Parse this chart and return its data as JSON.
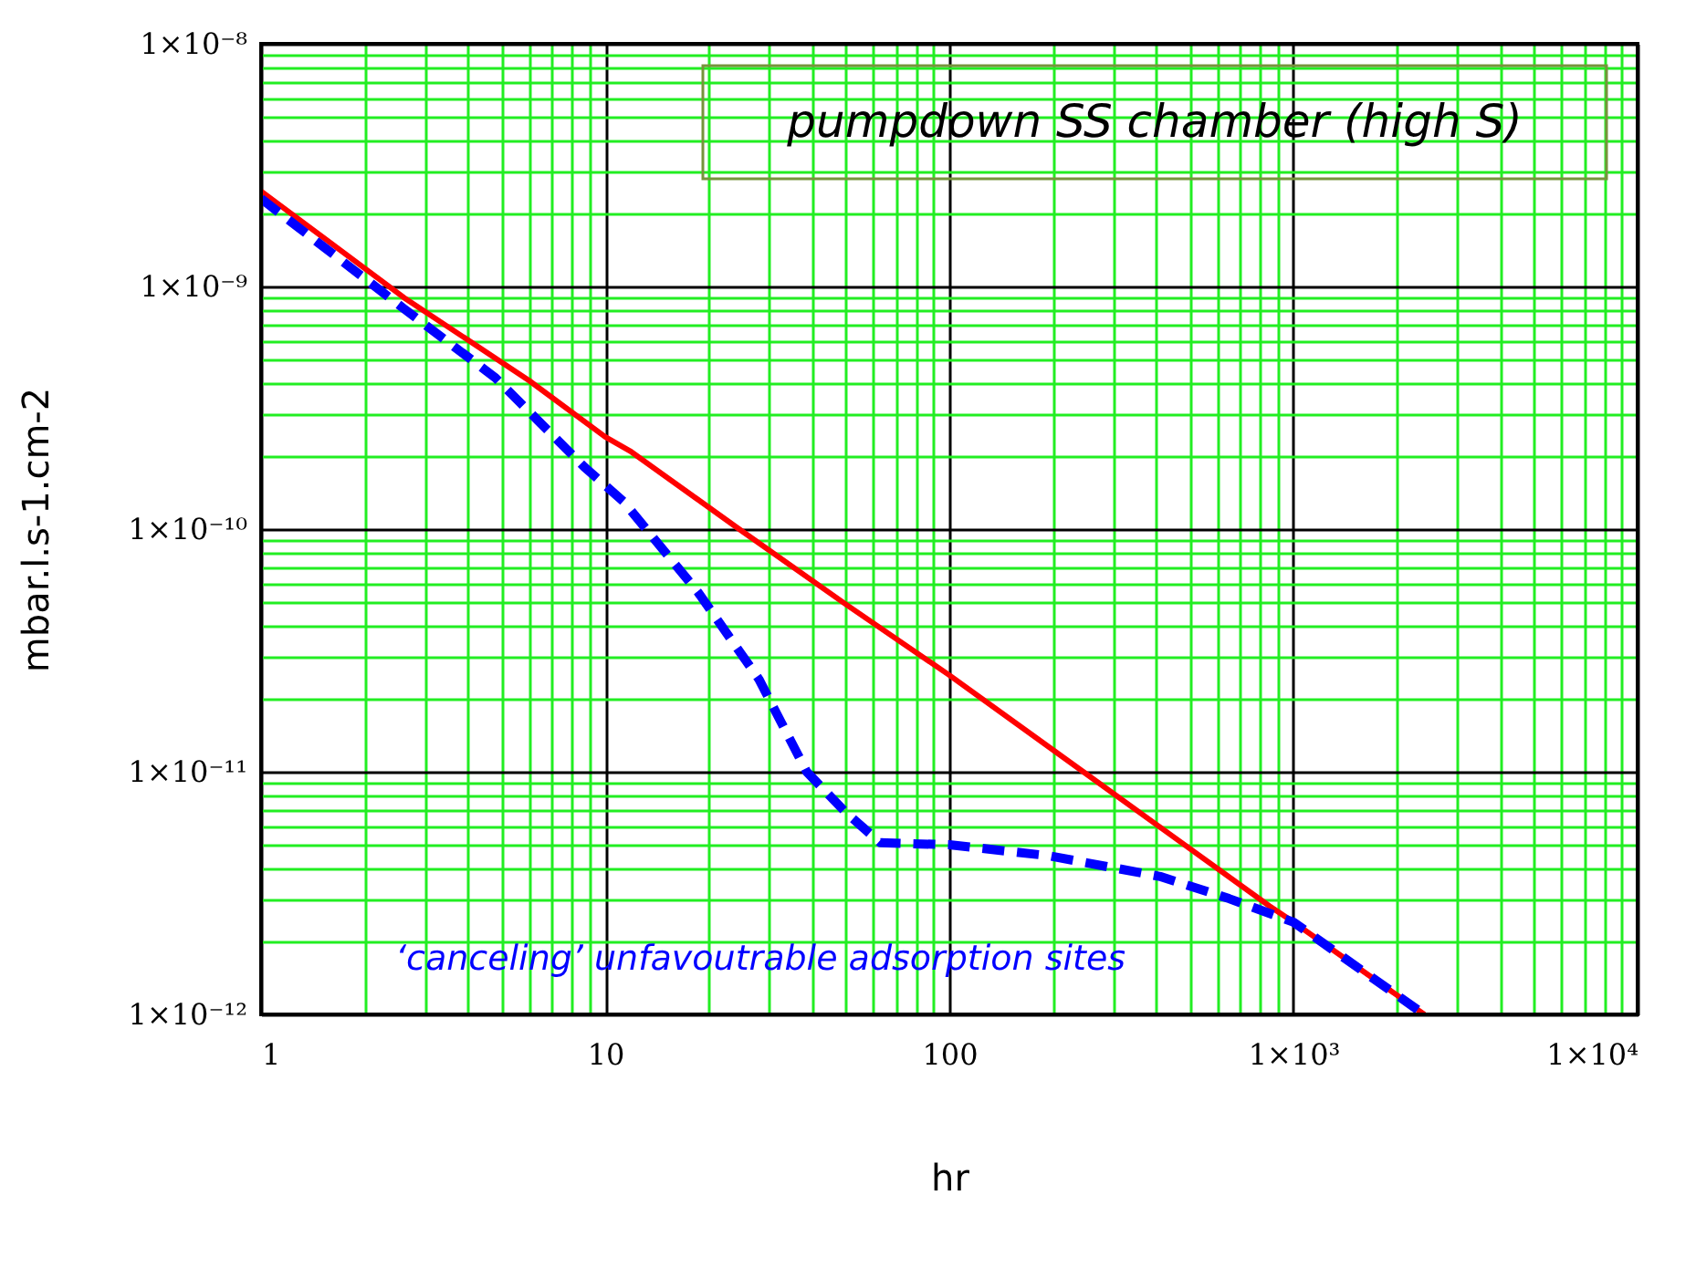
{
  "chart_data": {
    "type": "line",
    "xlabel": "hr",
    "ylabel": "mbar.l.s-1.cm-2",
    "annotations": [
      "pumpdown SS chamber (high S)",
      "‘canceling’ unfavoutrable adsorption sites"
    ],
    "log": "xy",
    "grid": true,
    "legend": false,
    "xlim": [
      1,
      10000
    ],
    "ylim": [
      1e-12,
      1e-08
    ],
    "xticks": [
      1,
      {
        "value": 2,
        "label": null
      },
      {
        "value": 3,
        "label": null
      },
      {
        "value": 4,
        "label": null
      },
      {
        "value": 5,
        "label": null
      },
      {
        "value": 6,
        "label": null
      },
      {
        "value": 7,
        "label": null
      },
      {
        "value": 8,
        "label": null
      },
      {
        "value": 9,
        "label": null
      },
      10,
      {
        "value": 20,
        "label": null
      },
      {
        "value": 30,
        "label": null
      },
      {
        "value": 40,
        "label": null
      },
      {
        "value": 50,
        "label": null
      },
      {
        "value": 60,
        "label": null
      },
      {
        "value": 70,
        "label": null
      },
      {
        "value": 80,
        "label": null
      },
      {
        "value": 90,
        "label": null
      },
      100,
      {
        "value": 200,
        "label": null
      },
      {
        "value": 300,
        "label": null
      },
      {
        "value": 400,
        "label": null
      },
      {
        "value": 500,
        "label": null
      },
      {
        "value": 600,
        "label": null
      },
      {
        "value": 700,
        "label": null
      },
      {
        "value": 800,
        "label": null
      },
      {
        "value": 900,
        "label": null
      },
      {
        "value": 1000,
        "label": "1×10³"
      },
      {
        "value": 2000,
        "label": null
      },
      {
        "value": 3000,
        "label": null
      },
      {
        "value": 4000,
        "label": null
      },
      {
        "value": 5000,
        "label": null
      },
      {
        "value": 6000,
        "label": null
      },
      {
        "value": 7000,
        "label": null
      },
      {
        "value": 8000,
        "label": null
      },
      {
        "value": 9000,
        "label": null
      },
      {
        "value": 10000,
        "label": "1×10⁴"
      }
    ],
    "yticks": [
      {
        "value": 1e-12,
        "label": "1×10⁻¹²"
      },
      {
        "value": 2e-12,
        "label": null
      },
      {
        "value": 3e-12,
        "label": null
      },
      {
        "value": 4e-12,
        "label": null
      },
      {
        "value": 5e-12,
        "label": null
      },
      {
        "value": 6e-12,
        "label": null
      },
      {
        "value": 7e-12,
        "label": null
      },
      {
        "value": 8e-12,
        "label": null
      },
      {
        "value": 9e-12,
        "label": null
      },
      {
        "value": 1e-11,
        "label": "1×10⁻¹¹"
      },
      {
        "value": 2e-11,
        "label": null
      },
      {
        "value": 3e-11,
        "label": null
      },
      {
        "value": 4e-11,
        "label": null
      },
      {
        "value": 5e-11,
        "label": null
      },
      {
        "value": 6e-11,
        "label": null
      },
      {
        "value": 7e-11,
        "label": null
      },
      {
        "value": 8e-11,
        "label": null
      },
      {
        "value": 9e-11,
        "label": null
      },
      {
        "value": 1e-10,
        "label": "1×10⁻¹⁰"
      },
      {
        "value": 2e-10,
        "label": null
      },
      {
        "value": 3e-10,
        "label": null
      },
      {
        "value": 4e-10,
        "label": null
      },
      {
        "value": 5e-10,
        "label": null
      },
      {
        "value": 6e-10,
        "label": null
      },
      {
        "value": 7e-10,
        "label": null
      },
      {
        "value": 8e-10,
        "label": null
      },
      {
        "value": 9e-10,
        "label": null
      },
      {
        "value": 1e-09,
        "label": "1×10⁻⁹"
      },
      {
        "value": 2e-09,
        "label": null
      },
      {
        "value": 3e-09,
        "label": null
      },
      {
        "value": 4e-09,
        "label": null
      },
      {
        "value": 5e-09,
        "label": null
      },
      {
        "value": 6e-09,
        "label": null
      },
      {
        "value": 7e-09,
        "label": null
      },
      {
        "value": 8e-09,
        "label": null
      },
      {
        "value": 9e-09,
        "label": null
      },
      {
        "value": 1e-08,
        "label": "1×10⁻⁸"
      }
    ],
    "series": [
      {
        "color": "#ff0000",
        "line_style": "solid",
        "x": [
          1,
          2.6,
          6,
          10,
          11.8,
          24.5,
          50,
          100,
          245,
          850,
          1000,
          2400
        ],
        "values": [
          2.47e-09,
          9e-10,
          4.1e-10,
          2.4e-10,
          2.1e-10,
          1e-10,
          4.9e-11,
          2.5e-11,
          1e-11,
          2.8e-12,
          2.4e-12,
          1e-12
        ]
      },
      {
        "color": "#0000ff",
        "line_style": "dashed",
        "x": [
          1,
          2.6,
          4.8,
          8.7,
          11.3,
          18.6,
          28,
          38.5,
          50,
          63,
          100,
          196,
          410,
          650,
          1000,
          2400
        ],
        "values": [
          2.3e-09,
          8.1e-10,
          4.2e-10,
          1.8e-10,
          1.3e-10,
          5.5e-11,
          2.4e-11,
          1e-11,
          6.8e-12,
          5.1e-12,
          5e-12,
          4.5e-12,
          3.7e-12,
          3e-12,
          2.4e-12,
          1e-12
        ]
      }
    ]
  }
}
